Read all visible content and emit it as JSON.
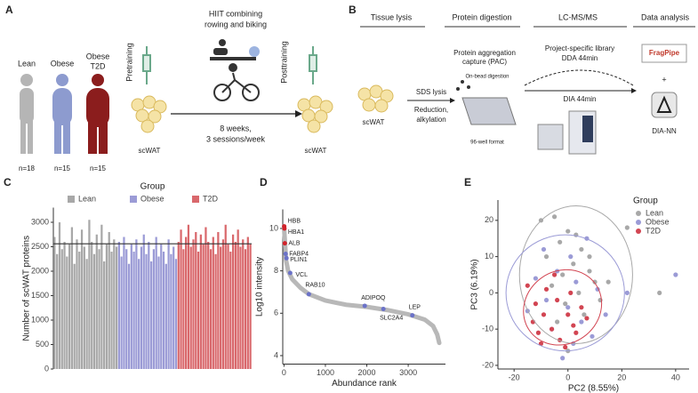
{
  "panel_a": {
    "label": "A",
    "groups": [
      "Lean",
      "Obese",
      "Obese",
      "T2D"
    ],
    "n": [
      "n=18",
      "n=15",
      "n=15"
    ],
    "pre": "Pretraining",
    "post": "Posttraining",
    "tissue": "scWAT",
    "tissue_post": "scWAT",
    "exercise": [
      "HIIT combining",
      "rowing and biking"
    ],
    "schedule": [
      "8 weeks,",
      "3 sessions/week"
    ]
  },
  "panel_b": {
    "label": "B",
    "headers": [
      "Tissue lysis",
      "Protein digestion",
      "LC-MS/MS",
      "Data analysis"
    ],
    "tissue": "scWAT",
    "lysis": [
      "SDS lysis",
      "Reduction,",
      "alkylation"
    ],
    "pac": [
      "Protein aggregation",
      "capture (PAC)"
    ],
    "bead": "On-bead digestion",
    "plate": "96-well format",
    "library": [
      "Project-specific library",
      "DDA 44min"
    ],
    "dia": "DIA 44min",
    "tools": [
      "FragPipe",
      "+",
      "DIA-NN"
    ]
  },
  "chart_data": [
    {
      "type": "bar",
      "label": "C",
      "ylabel": "Number of scWAT proteins",
      "legend_title": "Group",
      "legend": "top",
      "ylim": [
        0,
        3300
      ],
      "yticks": [
        0,
        500,
        1000,
        1500,
        2000,
        2500,
        3000
      ],
      "reference_line": 2560,
      "series": [
        {
          "name": "Lean",
          "color": "#a8a8a8",
          "values": [
            2700,
            2350,
            3000,
            2450,
            2600,
            2300,
            2550,
            2900,
            2150,
            2650,
            2400,
            2850,
            2500,
            2250,
            3050,
            2600,
            2350,
            2750,
            2450,
            2950,
            2200,
            2550,
            2800,
            2400,
            2650,
            2500
          ]
        },
        {
          "name": "Obese",
          "color": "#9b9bd6",
          "values": [
            2600,
            2300,
            2700,
            2450,
            2150,
            2550,
            2400,
            2650,
            2250,
            2500,
            2750,
            2350,
            2600,
            2200,
            2450,
            2700,
            2300,
            2550,
            2400,
            2150,
            2650,
            2350,
            2500,
            2250
          ]
        },
        {
          "name": "T2D",
          "color": "#d9686c",
          "values": [
            2600,
            2850,
            2450,
            2700,
            2950,
            2500,
            2650,
            2800,
            2400,
            2750,
            2550,
            2900,
            2600,
            2450,
            2700,
            2350,
            2800,
            2500,
            2650,
            2950,
            2550,
            2400,
            2750,
            2600,
            2850,
            2500,
            2650,
            2450,
            2700,
            2550
          ]
        }
      ]
    },
    {
      "type": "line",
      "label": "D",
      "xlabel": "Abundance rank",
      "ylabel": "Log10 intensity",
      "color": "#b8b8b8",
      "xlim": [
        -30,
        3900
      ],
      "ylim": [
        3.6,
        10.9
      ],
      "xticks": [
        0,
        1000,
        2000,
        3000
      ],
      "yticks": [
        4,
        6,
        8,
        10
      ],
      "x": [
        0,
        50,
        100,
        200,
        400,
        600,
        1000,
        1500,
        2000,
        2500,
        3000,
        3400,
        3600,
        3700,
        3750
      ],
      "values": [
        10.1,
        8.5,
        8.0,
        7.6,
        7.2,
        6.9,
        6.6,
        6.4,
        6.3,
        6.15,
        5.95,
        5.7,
        5.4,
        5.0,
        4.6
      ],
      "annotations": [
        {
          "label": "HBB",
          "x": 5,
          "y": 10.1,
          "color": "#d0222a"
        },
        {
          "label": "HBA1",
          "x": 10,
          "y": 10.0,
          "color": "#d0222a"
        },
        {
          "label": "ALB",
          "x": 20,
          "y": 9.3,
          "color": "#d0222a"
        },
        {
          "label": "FABP4",
          "x": 40,
          "y": 8.8,
          "color": "#6b72c8"
        },
        {
          "label": "PLIN1",
          "x": 60,
          "y": 8.6,
          "color": "#6b72c8"
        },
        {
          "label": "VCL",
          "x": 150,
          "y": 7.9,
          "color": "#6b72c8"
        },
        {
          "label": "RAB10",
          "x": 600,
          "y": 6.9,
          "color": "#6b72c8"
        },
        {
          "label": "ADIPOQ",
          "x": 1950,
          "y": 6.35,
          "color": "#6b72c8"
        },
        {
          "label": "SLC2A4",
          "x": 2400,
          "y": 6.2,
          "color": "#6b72c8"
        },
        {
          "label": "LEP",
          "x": 3100,
          "y": 5.9,
          "color": "#6b72c8"
        }
      ]
    },
    {
      "type": "scatter",
      "label": "E",
      "xlabel": "PC2 (8.55%)",
      "ylabel": "PC3 (6.19%)",
      "legend_title": "Group",
      "legend": "right",
      "xlim": [
        -26,
        45
      ],
      "ylim": [
        -21,
        25.6
      ],
      "xticks": [
        -20,
        0,
        20,
        40
      ],
      "yticks": [
        -20,
        -10,
        0,
        10,
        20
      ],
      "series": [
        {
          "name": "Lean",
          "color": "#a8a8a8",
          "x": [
            -10,
            -5,
            0,
            3,
            -3,
            5,
            -8,
            2,
            8,
            -2,
            10,
            -6,
            4,
            12,
            -1,
            6,
            -4,
            15,
            34,
            22,
            0,
            8
          ],
          "values": [
            20,
            21,
            17,
            16,
            14,
            12,
            10,
            8,
            6,
            5,
            3,
            2,
            0,
            -2,
            -3,
            -6,
            -8,
            3,
            0,
            18,
            -16,
            10
          ],
          "ellipse": {
            "cx": 3,
            "cy": 5,
            "rx": 21,
            "ry": 19,
            "angle": 0
          }
        },
        {
          "name": "Obese",
          "color": "#9b9bd6",
          "x": [
            -12,
            -8,
            -4,
            0,
            3,
            -6,
            5,
            9,
            -15,
            2,
            11,
            -2,
            22,
            40,
            7,
            -9,
            1,
            14
          ],
          "values": [
            4,
            -2,
            6,
            -4,
            3,
            -10,
            -8,
            -12,
            -5,
            -14,
            1,
            -18,
            0,
            5,
            15,
            12,
            10,
            -6
          ],
          "ellipse": {
            "cx": -1,
            "cy": 0,
            "rx": 22,
            "ry": 16,
            "angle": 0
          }
        },
        {
          "name": "T2D",
          "color": "#d24552",
          "x": [
            -15,
            -12,
            -9,
            -6,
            -3,
            -1,
            2,
            5,
            -8,
            -13,
            -4,
            0,
            3,
            -10,
            7,
            -5,
            -11,
            1
          ],
          "values": [
            2,
            -3,
            -6,
            -10,
            -13,
            -15,
            -9,
            -4,
            1,
            -8,
            -2,
            -6,
            -11,
            -14,
            -7,
            5,
            -11,
            0
          ],
          "ellipse": {
            "cx": -2,
            "cy": -4,
            "rx": 15,
            "ry": 10,
            "angle": -35
          }
        }
      ]
    }
  ]
}
